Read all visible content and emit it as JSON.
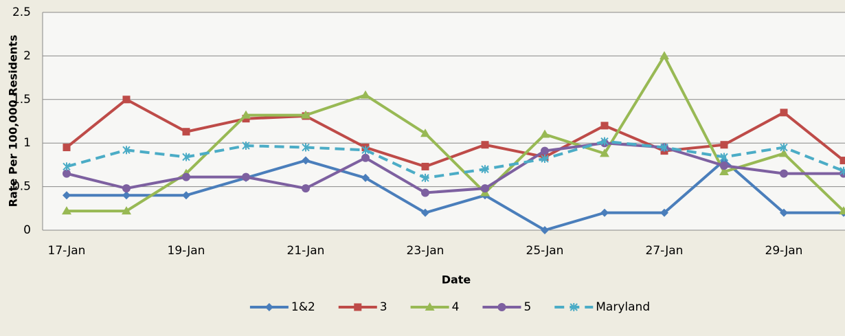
{
  "chart_data": {
    "type": "line",
    "y_label": "Rate Per 100,000 Residents",
    "x_label": "Date",
    "categories": [
      "17-Jan",
      null,
      "19-Jan",
      null,
      "21-Jan",
      null,
      "23-Jan",
      null,
      "25-Jan",
      null,
      "27-Jan",
      null,
      "29-Jan",
      null
    ],
    "series": [
      {
        "name": "1&2",
        "color": "#4a7ebb",
        "marker": "diamond",
        "dashed": false,
        "values": [
          0.4,
          0.4,
          0.4,
          0.6,
          0.8,
          0.6,
          0.2,
          0.4,
          0,
          0.2,
          0.2,
          0.8,
          0.2,
          0.2
        ]
      },
      {
        "name": "3",
        "color": "#be4b48",
        "marker": "square",
        "dashed": false,
        "values": [
          0.95,
          1.5,
          1.13,
          1.28,
          1.31,
          0.95,
          0.73,
          0.98,
          0.84,
          1.2,
          0.91,
          0.98,
          1.35,
          0.8
        ]
      },
      {
        "name": "4",
        "color": "#98b954",
        "marker": "triangle",
        "dashed": false,
        "values": [
          0.22,
          0.22,
          0.65,
          1.32,
          1.32,
          1.55,
          1.11,
          0.43,
          1.1,
          0.88,
          2.0,
          0.67,
          0.88,
          0.22
        ]
      },
      {
        "name": "5",
        "color": "#7d60a0",
        "marker": "circle",
        "dashed": false,
        "values": [
          0.65,
          0.48,
          0.61,
          0.61,
          0.48,
          0.83,
          0.43,
          0.48,
          0.91,
          1.0,
          0.95,
          0.74,
          0.65,
          0.65
        ]
      },
      {
        "name": "Maryland",
        "color": "#4bacc6",
        "marker": "star",
        "dashed": true,
        "values": [
          0.73,
          0.92,
          0.84,
          0.97,
          0.95,
          0.92,
          0.6,
          0.7,
          0.82,
          1.02,
          0.95,
          0.84,
          0.95,
          0.68
        ]
      }
    ],
    "ylim": [
      0,
      2.5
    ],
    "yticks": [
      0,
      0.5,
      1,
      1.5,
      2,
      2.5
    ],
    "grid": true,
    "legend": "bottom"
  }
}
